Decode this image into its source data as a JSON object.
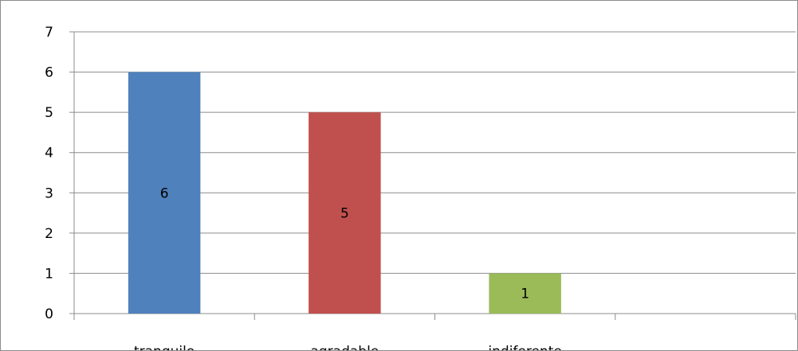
{
  "chart_data": {
    "type": "bar",
    "categories": [
      "tranquilo",
      "agradable",
      "indiferente",
      ""
    ],
    "values": [
      6,
      5,
      1,
      null
    ],
    "data_labels": [
      "6",
      "5",
      "1",
      ""
    ],
    "colors": [
      "#4f81bd",
      "#c0504d",
      "#9bbb59",
      "#4f81bd"
    ],
    "title": "",
    "xlabel": "",
    "ylabel": "",
    "ylim": [
      0,
      7
    ],
    "yticks": [
      "0",
      "1",
      "2",
      "3",
      "4",
      "5",
      "6",
      "7"
    ],
    "grid": true,
    "legend": "none"
  }
}
